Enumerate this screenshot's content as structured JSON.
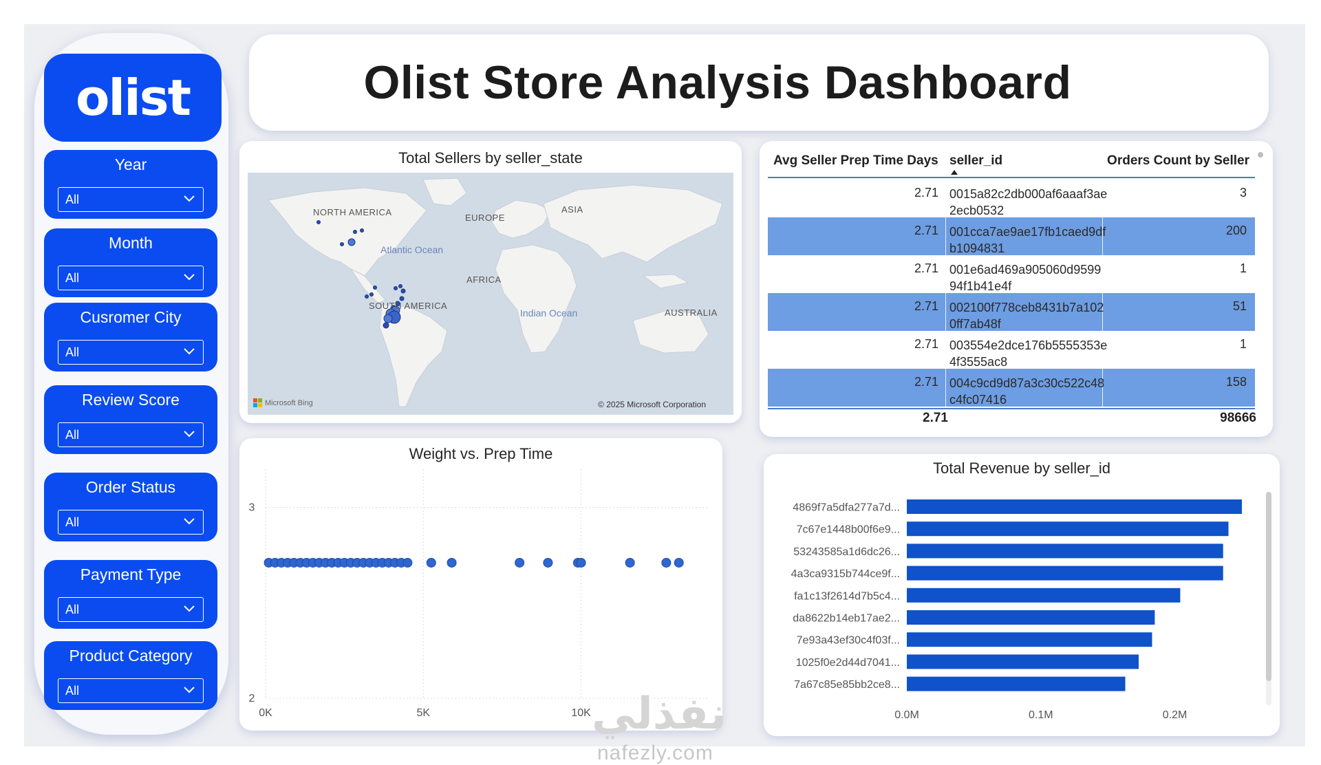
{
  "title": "Olist Store Analysis Dashboard",
  "logo_text": "olist",
  "filters": [
    {
      "label": "Year",
      "value": "All"
    },
    {
      "label": "Month",
      "value": "All"
    },
    {
      "label": "Cusromer City",
      "value": "All"
    },
    {
      "label": "Review Score",
      "value": "All"
    },
    {
      "label": "Order Status",
      "value": "All"
    },
    {
      "label": "Payment Type",
      "value": "All"
    },
    {
      "label": "Product Category",
      "value": "All"
    }
  ],
  "map": {
    "title": "Total Sellers by seller_state",
    "labels": {
      "north_america": "NORTH AMERICA",
      "europe": "EUROPE",
      "asia": "ASIA",
      "africa": "AFRICA",
      "south_america": "SOUTH AMERICA",
      "australia": "AUSTRALIA",
      "atlantic": "Atlantic Ocean",
      "indian": "Indian Ocean"
    },
    "attribution_left": "Microsoft Bing",
    "attribution_right": "© 2025 Microsoft Corporation"
  },
  "table": {
    "headers": [
      "Avg Seller Prep Time Days",
      "seller_id",
      "Orders Count by Seller"
    ],
    "rows": [
      {
        "avg": "2.71",
        "seller_id": "0015a82c2db000af6aaaf3ae2ecb0532",
        "orders": "3"
      },
      {
        "avg": "2.71",
        "seller_id": "001cca7ae9ae17fb1caed9dfb1094831",
        "orders": "200"
      },
      {
        "avg": "2.71",
        "seller_id": "001e6ad469a905060d959994f1b41e4f",
        "orders": "1"
      },
      {
        "avg": "2.71",
        "seller_id": "002100f778ceb8431b7a1020ff7ab48f",
        "orders": "51"
      },
      {
        "avg": "2.71",
        "seller_id": "003554e2dce176b5555353e4f3555ac8",
        "orders": "1"
      },
      {
        "avg": "2.71",
        "seller_id": "004c9cd9d87a3c30c522c48c4fc07416",
        "orders": "158"
      }
    ],
    "total_avg": "2.71",
    "total_orders": "98666"
  },
  "chart_data": [
    {
      "type": "scatter",
      "title": "Weight vs. Prep Time",
      "x_ticks": [
        "0K",
        "5K",
        "10K"
      ],
      "y_ticks": [
        "3",
        "2"
      ],
      "xlim": [
        0,
        14000
      ],
      "ylim": [
        2,
        3.2
      ],
      "points": [
        {
          "x": 100,
          "y": 2.71
        },
        {
          "x": 300,
          "y": 2.71
        },
        {
          "x": 500,
          "y": 2.71
        },
        {
          "x": 700,
          "y": 2.71
        },
        {
          "x": 900,
          "y": 2.71
        },
        {
          "x": 1100,
          "y": 2.71
        },
        {
          "x": 1300,
          "y": 2.71
        },
        {
          "x": 1500,
          "y": 2.71
        },
        {
          "x": 1700,
          "y": 2.71
        },
        {
          "x": 1900,
          "y": 2.71
        },
        {
          "x": 2100,
          "y": 2.71
        },
        {
          "x": 2300,
          "y": 2.71
        },
        {
          "x": 2500,
          "y": 2.71
        },
        {
          "x": 2700,
          "y": 2.71
        },
        {
          "x": 2900,
          "y": 2.71
        },
        {
          "x": 3100,
          "y": 2.71
        },
        {
          "x": 3300,
          "y": 2.71
        },
        {
          "x": 3500,
          "y": 2.71
        },
        {
          "x": 3700,
          "y": 2.71
        },
        {
          "x": 3900,
          "y": 2.71
        },
        {
          "x": 4100,
          "y": 2.71
        },
        {
          "x": 4300,
          "y": 2.71
        },
        {
          "x": 4500,
          "y": 2.71
        },
        {
          "x": 5250,
          "y": 2.71
        },
        {
          "x": 5900,
          "y": 2.71
        },
        {
          "x": 8050,
          "y": 2.71
        },
        {
          "x": 8950,
          "y": 2.71
        },
        {
          "x": 9900,
          "y": 2.71
        },
        {
          "x": 10000,
          "y": 2.71
        },
        {
          "x": 11550,
          "y": 2.71
        },
        {
          "x": 12700,
          "y": 2.71
        },
        {
          "x": 13100,
          "y": 2.71
        }
      ]
    },
    {
      "type": "bar",
      "orientation": "horizontal",
      "title": "Total Revenue by seller_id",
      "categories": [
        "4869f7a5dfa277a7d...",
        "7c67e1448b00f6e9...",
        "53243585a1d6dc26...",
        "4a3ca9315b744ce9f...",
        "fa1c13f2614d7b5c4...",
        "da8622b14eb17ae2...",
        "7e93a43ef30c4f03f...",
        "1025f0e2d44d7041...",
        "7a67c85e85bb2ce8..."
      ],
      "values": [
        250000,
        240000,
        236000,
        236000,
        204000,
        185000,
        183000,
        173000,
        163000
      ],
      "x_ticks": [
        "0.0M",
        "0.1M",
        "0.2M"
      ],
      "xlim": [
        0,
        250000
      ],
      "color": "#0f52c9"
    }
  ],
  "watermark": {
    "arabic": "نفذلي",
    "latin": "nafezly.com"
  }
}
